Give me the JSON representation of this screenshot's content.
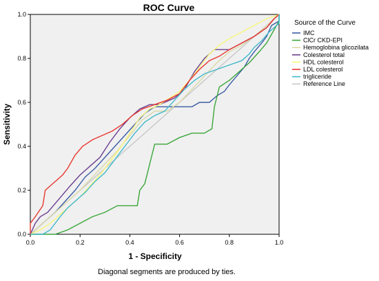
{
  "chart_data": {
    "type": "line",
    "title": "ROC Curve",
    "xlabel": "1 - Specificity",
    "ylabel": "Sensitivity",
    "xlim": [
      0,
      1
    ],
    "ylim": [
      0,
      1
    ],
    "xticks": [
      "0.0",
      "0.2",
      "0.4",
      "0.6",
      "0.8",
      "1.0"
    ],
    "yticks": [
      "0.0",
      "0.2",
      "0.4",
      "0.6",
      "0.8",
      "1.0"
    ],
    "grid": false,
    "legend": {
      "title": "Source of the Curve",
      "placement": "right"
    },
    "footnote": "Diagonal segments are produced by ties.",
    "series": [
      {
        "name": "IMC",
        "color": "#3b5ba5",
        "points": [
          [
            0,
            0
          ],
          [
            0.02,
            0.02
          ],
          [
            0.05,
            0.05
          ],
          [
            0.1,
            0.1
          ],
          [
            0.14,
            0.15
          ],
          [
            0.18,
            0.2
          ],
          [
            0.22,
            0.26
          ],
          [
            0.26,
            0.3
          ],
          [
            0.3,
            0.35
          ],
          [
            0.34,
            0.4
          ],
          [
            0.38,
            0.45
          ],
          [
            0.42,
            0.5
          ],
          [
            0.46,
            0.55
          ],
          [
            0.5,
            0.58
          ],
          [
            0.55,
            0.58
          ],
          [
            0.6,
            0.58
          ],
          [
            0.65,
            0.58
          ],
          [
            0.68,
            0.6
          ],
          [
            0.72,
            0.6
          ],
          [
            0.75,
            0.63
          ],
          [
            0.78,
            0.65
          ],
          [
            0.8,
            0.68
          ],
          [
            0.83,
            0.72
          ],
          [
            0.86,
            0.76
          ],
          [
            0.88,
            0.8
          ],
          [
            0.9,
            0.83
          ],
          [
            0.93,
            0.87
          ],
          [
            0.95,
            0.9
          ],
          [
            0.97,
            0.95
          ],
          [
            1,
            0.97
          ],
          [
            1,
            1
          ]
        ]
      },
      {
        "name": "ClCr CKD-EPI",
        "color": "#3aa63a",
        "points": [
          [
            0,
            0
          ],
          [
            0.05,
            0
          ],
          [
            0.1,
            0
          ],
          [
            0.15,
            0.02
          ],
          [
            0.2,
            0.05
          ],
          [
            0.25,
            0.08
          ],
          [
            0.3,
            0.1
          ],
          [
            0.35,
            0.13
          ],
          [
            0.4,
            0.13
          ],
          [
            0.43,
            0.13
          ],
          [
            0.44,
            0.2
          ],
          [
            0.46,
            0.23
          ],
          [
            0.48,
            0.32
          ],
          [
            0.5,
            0.41
          ],
          [
            0.55,
            0.41
          ],
          [
            0.6,
            0.44
          ],
          [
            0.65,
            0.46
          ],
          [
            0.7,
            0.46
          ],
          [
            0.73,
            0.48
          ],
          [
            0.74,
            0.58
          ],
          [
            0.76,
            0.67
          ],
          [
            0.8,
            0.7
          ],
          [
            0.85,
            0.75
          ],
          [
            0.88,
            0.78
          ],
          [
            0.92,
            0.83
          ],
          [
            0.95,
            0.87
          ],
          [
            0.98,
            0.93
          ],
          [
            1,
            0.97
          ],
          [
            1,
            1
          ]
        ]
      },
      {
        "name": "Hemoglobina glicozilata",
        "color": "#d9d9a8",
        "points": [
          [
            0,
            0
          ],
          [
            0.04,
            0.04
          ],
          [
            0.08,
            0.08
          ],
          [
            0.12,
            0.12
          ],
          [
            0.16,
            0.16
          ],
          [
            0.2,
            0.2
          ],
          [
            0.25,
            0.26
          ],
          [
            0.3,
            0.32
          ],
          [
            0.35,
            0.38
          ],
          [
            0.4,
            0.45
          ],
          [
            0.45,
            0.52
          ],
          [
            0.5,
            0.56
          ],
          [
            0.55,
            0.56
          ],
          [
            0.6,
            0.6
          ],
          [
            0.65,
            0.66
          ],
          [
            0.7,
            0.72
          ],
          [
            0.75,
            0.78
          ],
          [
            0.8,
            0.83
          ],
          [
            0.85,
            0.86
          ],
          [
            0.9,
            0.9
          ],
          [
            0.95,
            0.95
          ],
          [
            1,
            1
          ]
        ]
      },
      {
        "name": "Colesterol total",
        "color": "#6a3d8f",
        "points": [
          [
            0,
            0
          ],
          [
            0.02,
            0.05
          ],
          [
            0.04,
            0.08
          ],
          [
            0.07,
            0.1
          ],
          [
            0.1,
            0.14
          ],
          [
            0.13,
            0.18
          ],
          [
            0.16,
            0.22
          ],
          [
            0.2,
            0.27
          ],
          [
            0.24,
            0.31
          ],
          [
            0.28,
            0.35
          ],
          [
            0.32,
            0.42
          ],
          [
            0.36,
            0.48
          ],
          [
            0.4,
            0.53
          ],
          [
            0.44,
            0.57
          ],
          [
            0.48,
            0.59
          ],
          [
            0.52,
            0.59
          ],
          [
            0.58,
            0.62
          ],
          [
            0.62,
            0.66
          ],
          [
            0.66,
            0.74
          ],
          [
            0.7,
            0.8
          ],
          [
            0.74,
            0.84
          ],
          [
            0.8,
            0.84
          ],
          [
            0.85,
            0.87
          ],
          [
            0.9,
            0.9
          ],
          [
            0.95,
            0.94
          ],
          [
            0.98,
            0.98
          ],
          [
            1,
            1
          ]
        ]
      },
      {
        "name": "HDL colesterol",
        "color": "#f7f77a",
        "points": [
          [
            0,
            0
          ],
          [
            0.04,
            0.02
          ],
          [
            0.08,
            0.05
          ],
          [
            0.12,
            0.09
          ],
          [
            0.16,
            0.13
          ],
          [
            0.2,
            0.17
          ],
          [
            0.24,
            0.22
          ],
          [
            0.28,
            0.27
          ],
          [
            0.32,
            0.33
          ],
          [
            0.36,
            0.39
          ],
          [
            0.4,
            0.46
          ],
          [
            0.44,
            0.53
          ],
          [
            0.48,
            0.57
          ],
          [
            0.52,
            0.59
          ],
          [
            0.56,
            0.62
          ],
          [
            0.6,
            0.65
          ],
          [
            0.64,
            0.7
          ],
          [
            0.68,
            0.76
          ],
          [
            0.72,
            0.82
          ],
          [
            0.76,
            0.86
          ],
          [
            0.8,
            0.89
          ],
          [
            0.85,
            0.92
          ],
          [
            0.9,
            0.95
          ],
          [
            0.95,
            0.98
          ],
          [
            1,
            1
          ]
        ]
      },
      {
        "name": "LDL colesterol",
        "color": "#e8372f",
        "points": [
          [
            0,
            0
          ],
          [
            0,
            0.05
          ],
          [
            0.02,
            0.08
          ],
          [
            0.05,
            0.13
          ],
          [
            0.06,
            0.2
          ],
          [
            0.09,
            0.23
          ],
          [
            0.13,
            0.27
          ],
          [
            0.15,
            0.3
          ],
          [
            0.18,
            0.36
          ],
          [
            0.21,
            0.4
          ],
          [
            0.25,
            0.43
          ],
          [
            0.29,
            0.45
          ],
          [
            0.33,
            0.47
          ],
          [
            0.37,
            0.5
          ],
          [
            0.41,
            0.54
          ],
          [
            0.45,
            0.57
          ],
          [
            0.5,
            0.59
          ],
          [
            0.55,
            0.61
          ],
          [
            0.6,
            0.64
          ],
          [
            0.64,
            0.7
          ],
          [
            0.68,
            0.75
          ],
          [
            0.72,
            0.79
          ],
          [
            0.76,
            0.81
          ],
          [
            0.8,
            0.84
          ],
          [
            0.85,
            0.87
          ],
          [
            0.9,
            0.9
          ],
          [
            0.95,
            0.94
          ],
          [
            0.98,
            0.98
          ],
          [
            1,
            1
          ]
        ]
      },
      {
        "name": "trigliceride",
        "color": "#3fb8c9",
        "points": [
          [
            0,
            0
          ],
          [
            0.05,
            0
          ],
          [
            0.08,
            0.02
          ],
          [
            0.1,
            0.05
          ],
          [
            0.12,
            0.08
          ],
          [
            0.15,
            0.12
          ],
          [
            0.18,
            0.15
          ],
          [
            0.22,
            0.19
          ],
          [
            0.26,
            0.24
          ],
          [
            0.3,
            0.28
          ],
          [
            0.34,
            0.34
          ],
          [
            0.38,
            0.4
          ],
          [
            0.42,
            0.46
          ],
          [
            0.46,
            0.51
          ],
          [
            0.5,
            0.54
          ],
          [
            0.54,
            0.56
          ],
          [
            0.58,
            0.61
          ],
          [
            0.62,
            0.66
          ],
          [
            0.66,
            0.7
          ],
          [
            0.7,
            0.73
          ],
          [
            0.75,
            0.75
          ],
          [
            0.8,
            0.77
          ],
          [
            0.85,
            0.79
          ],
          [
            0.88,
            0.82
          ],
          [
            0.9,
            0.85
          ],
          [
            0.93,
            0.88
          ],
          [
            0.96,
            0.92
          ],
          [
            1,
            0.96
          ],
          [
            1,
            1
          ]
        ]
      },
      {
        "name": "Reference Line",
        "color": "#c8c8c8",
        "points": [
          [
            0,
            0
          ],
          [
            1,
            1
          ]
        ]
      }
    ]
  }
}
